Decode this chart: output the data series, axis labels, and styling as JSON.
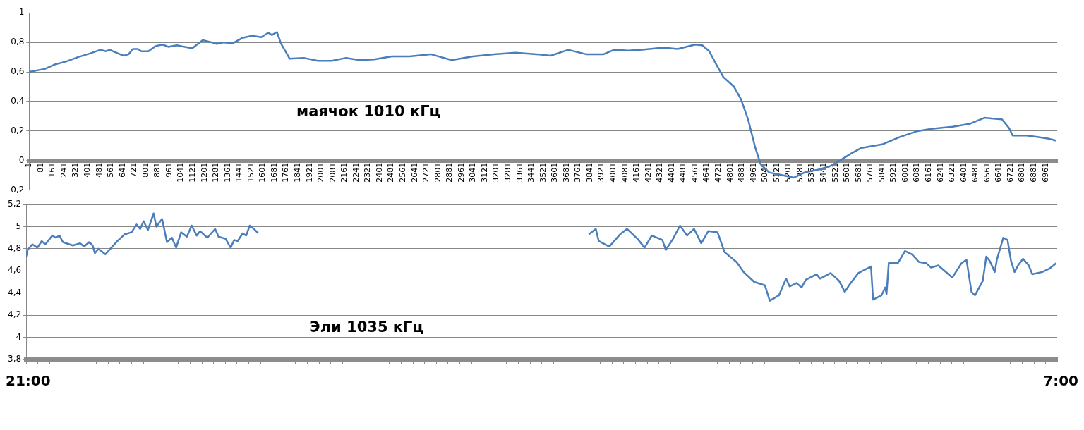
{
  "chart_data": [
    {
      "type": "line",
      "title": "маячок 1010 кГц",
      "legend": false,
      "marker": "none",
      "grid": "y",
      "xlim": [
        1,
        7040
      ],
      "xticks": [
        1,
        81,
        161,
        241,
        321,
        401,
        481,
        561,
        641,
        721,
        801,
        881,
        961,
        1041,
        1121,
        1201,
        1281,
        1361,
        1441,
        1521,
        1601,
        1681,
        1761,
        1841,
        1921,
        2001,
        2081,
        2161,
        2241,
        2321,
        2401,
        2481,
        2561,
        2641,
        2721,
        2801,
        2881,
        2961,
        3041,
        3121,
        3201,
        3281,
        3361,
        3441,
        3521,
        3601,
        3681,
        3761,
        3841,
        3921,
        4001,
        4081,
        4161,
        4241,
        4321,
        4401,
        4481,
        4561,
        4641,
        4721,
        4801,
        4881,
        4961,
        5041,
        5121,
        5201,
        5281,
        5361,
        5441,
        5521,
        5601,
        5681,
        5761,
        5841,
        5921,
        6001,
        6081,
        6161,
        6241,
        6321,
        6401,
        6481,
        6561,
        6641,
        6721,
        6801,
        6881,
        6961
      ],
      "ylim": [
        -0.2,
        1
      ],
      "yticks": [
        {
          "value": -0.2,
          "label": "-0,2"
        },
        0,
        {
          "value": 0.2,
          "label": "0,2"
        },
        {
          "value": 0.4,
          "label": "0,4"
        },
        {
          "value": 0.6,
          "label": "0,6"
        },
        {
          "value": 0.8,
          "label": "0,8"
        },
        1
      ],
      "series": [
        {
          "color": "#4a7ebb",
          "x": [
            1,
            107,
            175,
            252,
            334,
            416,
            489,
            527,
            552,
            610,
            648,
            682,
            711,
            745,
            769,
            817,
            866,
            914,
            953,
            1011,
            1093,
            1117,
            1189,
            1252,
            1286,
            1334,
            1397,
            1460,
            1527,
            1590,
            1638,
            1663,
            1697,
            1726,
            1784,
            1880,
            1977,
            2073,
            2170,
            2267,
            2363,
            2484,
            2605,
            2750,
            2894,
            3040,
            3184,
            3330,
            3474,
            3571,
            3692,
            3813,
            3934,
            4006,
            4103,
            4199,
            4344,
            4441,
            4561,
            4610,
            4658,
            4706,
            4754,
            4827,
            4875,
            4923,
            4972,
            5010,
            5068,
            5165,
            5237,
            5310,
            5406,
            5479,
            5551,
            5624,
            5696,
            5841,
            5962,
            6083,
            6179,
            6324,
            6445,
            6542,
            6590,
            6662,
            6711,
            6735,
            6831,
            6904,
            6976,
            7034
          ],
          "values": [
            0.6,
            0.62,
            0.65,
            0.67,
            0.7,
            0.725,
            0.75,
            0.74,
            0.75,
            0.725,
            0.71,
            0.72,
            0.755,
            0.755,
            0.74,
            0.74,
            0.775,
            0.785,
            0.77,
            0.78,
            0.765,
            0.76,
            0.815,
            0.8,
            0.79,
            0.8,
            0.795,
            0.83,
            0.845,
            0.835,
            0.865,
            0.85,
            0.87,
            0.79,
            0.69,
            0.695,
            0.675,
            0.675,
            0.695,
            0.68,
            0.685,
            0.705,
            0.705,
            0.72,
            0.68,
            0.705,
            0.72,
            0.73,
            0.72,
            0.71,
            0.75,
            0.72,
            0.72,
            0.75,
            0.745,
            0.75,
            0.765,
            0.755,
            0.785,
            0.78,
            0.74,
            0.65,
            0.565,
            0.5,
            0.415,
            0.28,
            0.09,
            -0.025,
            -0.08,
            -0.1,
            -0.115,
            -0.08,
            -0.06,
            -0.04,
            0,
            0.045,
            0.085,
            0.11,
            0.16,
            0.2,
            0.215,
            0.23,
            0.25,
            0.29,
            0.285,
            0.28,
            0.22,
            0.17,
            0.17,
            0.16,
            0.15,
            0.135
          ]
        }
      ]
    },
    {
      "type": "line",
      "title": "Эли 1035 кГц",
      "legend": false,
      "marker": "none",
      "grid": "y",
      "tick_labels": "y",
      "annotations": [
        "21:00",
        "7:00"
      ],
      "xlim": [
        1,
        7040
      ],
      "xticks": [
        {
          "value": 1,
          "label": null
        },
        {
          "value": 81,
          "label": null
        },
        {
          "value": 161,
          "label": null
        },
        {
          "value": 241,
          "label": null
        },
        {
          "value": 321,
          "label": null
        },
        {
          "value": 401,
          "label": null
        },
        {
          "value": 481,
          "label": null
        },
        {
          "value": 561,
          "label": null
        },
        {
          "value": 641,
          "label": null
        },
        {
          "value": 721,
          "label": null
        },
        {
          "value": 801,
          "label": null
        },
        {
          "value": 881,
          "label": null
        },
        {
          "value": 961,
          "label": null
        },
        {
          "value": 1041,
          "label": null
        },
        {
          "value": 1121,
          "label": null
        },
        {
          "value": 1201,
          "label": null
        },
        {
          "value": 1281,
          "label": null
        },
        {
          "value": 1361,
          "label": null
        },
        {
          "value": 1441,
          "label": null
        },
        {
          "value": 1521,
          "label": null
        },
        {
          "value": 1601,
          "label": null
        },
        {
          "value": 1681,
          "label": null
        },
        {
          "value": 1761,
          "label": null
        },
        {
          "value": 1841,
          "label": null
        },
        {
          "value": 1921,
          "label": null
        },
        {
          "value": 2001,
          "label": null
        },
        {
          "value": 2081,
          "label": null
        },
        {
          "value": 2161,
          "label": null
        },
        {
          "value": 2241,
          "label": null
        },
        {
          "value": 2321,
          "label": null
        },
        {
          "value": 2401,
          "label": null
        },
        {
          "value": 2481,
          "label": null
        },
        {
          "value": 2561,
          "label": null
        },
        {
          "value": 2641,
          "label": null
        },
        {
          "value": 2721,
          "label": null
        },
        {
          "value": 2801,
          "label": null
        },
        {
          "value": 2881,
          "label": null
        },
        {
          "value": 2961,
          "label": null
        },
        {
          "value": 3041,
          "label": null
        },
        {
          "value": 3121,
          "label": null
        },
        {
          "value": 3201,
          "label": null
        },
        {
          "value": 3281,
          "label": null
        },
        {
          "value": 3361,
          "label": null
        },
        {
          "value": 3441,
          "label": null
        },
        {
          "value": 3521,
          "label": null
        },
        {
          "value": 3601,
          "label": null
        },
        {
          "value": 3681,
          "label": null
        },
        {
          "value": 3761,
          "label": null
        },
        {
          "value": 3841,
          "label": null
        },
        {
          "value": 3921,
          "label": null
        },
        {
          "value": 4001,
          "label": null
        },
        {
          "value": 4081,
          "label": null
        },
        {
          "value": 4161,
          "label": null
        },
        {
          "value": 4241,
          "label": null
        },
        {
          "value": 4321,
          "label": null
        },
        {
          "value": 4401,
          "label": null
        },
        {
          "value": 4481,
          "label": null
        },
        {
          "value": 4561,
          "label": null
        },
        {
          "value": 4641,
          "label": null
        },
        {
          "value": 4721,
          "label": null
        },
        {
          "value": 4801,
          "label": null
        },
        {
          "value": 4881,
          "label": null
        },
        {
          "value": 4961,
          "label": null
        },
        {
          "value": 5041,
          "label": null
        },
        {
          "value": 5121,
          "label": null
        },
        {
          "value": 5201,
          "label": null
        },
        {
          "value": 5281,
          "label": null
        },
        {
          "value": 5361,
          "label": null
        },
        {
          "value": 5441,
          "label": null
        },
        {
          "value": 5521,
          "label": null
        },
        {
          "value": 5601,
          "label": null
        },
        {
          "value": 5681,
          "label": null
        },
        {
          "value": 5761,
          "label": null
        },
        {
          "value": 5841,
          "label": null
        },
        {
          "value": 5921,
          "label": null
        },
        {
          "value": 6001,
          "label": null
        },
        {
          "value": 6081,
          "label": null
        },
        {
          "value": 6161,
          "label": null
        },
        {
          "value": 6241,
          "label": null
        },
        {
          "value": 6321,
          "label": null
        },
        {
          "value": 6401,
          "label": null
        },
        {
          "value": 6481,
          "label": null
        },
        {
          "value": 6561,
          "label": null
        },
        {
          "value": 6641,
          "label": null
        },
        {
          "value": 6721,
          "label": null
        },
        {
          "value": 6801,
          "label": null
        },
        {
          "value": 6881,
          "label": null
        },
        {
          "value": 6961,
          "label": null
        }
      ],
      "ylim": [
        3.8,
        5.2
      ],
      "yticks": [
        {
          "value": 3.8,
          "label": "3,8"
        },
        4,
        {
          "value": 4.2,
          "label": "4,2"
        },
        {
          "value": 4.4,
          "label": "4,4"
        },
        {
          "value": 4.6,
          "label": "4,6"
        },
        {
          "value": 4.8,
          "label": "4,8"
        },
        5,
        {
          "value": 5.2,
          "label": "5,2"
        }
      ],
      "series": [
        {
          "color": "#4a7ebb",
          "x": [
            1,
            11,
            44,
            78,
            107,
            131,
            180,
            204,
            228,
            252,
            320,
            368,
            397,
            431,
            455,
            470,
            494,
            542,
            576,
            624,
            672,
            721,
            755,
            779,
            803,
            832,
            871,
            890,
            929,
            962,
            996,
            1025,
            1059,
            1098,
            1131,
            1165,
            1189,
            1238,
            1291,
            1315,
            1363,
            1397,
            1421,
            1445,
            1479,
            1503,
            1527,
            1556,
            1585,
            2700,
            3842,
            3890,
            3910,
            3982,
            4055,
            4103,
            4175,
            4223,
            4272,
            4344,
            4368,
            4417,
            4465,
            4513,
            4561,
            4610,
            4658,
            4721,
            4769,
            4851,
            4899,
            4972,
            5044,
            5078,
            5141,
            5189,
            5213,
            5261,
            5295,
            5324,
            5397,
            5421,
            5493,
            5551,
            5590,
            5624,
            5682,
            5769,
            5783,
            5841,
            5866,
            5875,
            5890,
            5952,
            6001,
            6049,
            6097,
            6146,
            6179,
            6228,
            6324,
            6387,
            6421,
            6455,
            6479,
            6532,
            6556,
            6580,
            6614,
            6628,
            6672,
            6701,
            6725,
            6749,
            6773,
            6807,
            6846,
            6870,
            6938,
            6986,
            7034
          ],
          "values": [
            4.73,
            4.79,
            4.84,
            4.81,
            4.87,
            4.84,
            4.92,
            4.9,
            4.92,
            4.86,
            4.83,
            4.85,
            4.82,
            4.86,
            4.83,
            4.76,
            4.8,
            4.75,
            4.8,
            4.87,
            4.93,
            4.95,
            5.02,
            4.98,
            5.05,
            4.97,
            5.12,
            5,
            5.07,
            4.86,
            4.9,
            4.81,
            4.95,
            4.91,
            5.01,
            4.92,
            4.96,
            4.9,
            4.98,
            4.91,
            4.89,
            4.81,
            4.88,
            4.87,
            4.94,
            4.92,
            5.01,
            4.98,
            4.94,
            null,
            4.93,
            4.98,
            4.87,
            4.82,
            4.93,
            4.98,
            4.89,
            4.81,
            4.92,
            4.88,
            4.79,
            4.89,
            5.01,
            4.92,
            4.98,
            4.85,
            4.96,
            4.95,
            4.77,
            4.68,
            4.59,
            4.5,
            4.47,
            4.33,
            4.38,
            4.53,
            4.46,
            4.49,
            4.45,
            4.52,
            4.57,
            4.53,
            4.58,
            4.51,
            4.41,
            4.48,
            4.58,
            4.64,
            4.34,
            4.38,
            4.45,
            4.39,
            4.67,
            4.67,
            4.78,
            4.75,
            4.68,
            4.67,
            4.63,
            4.65,
            4.54,
            4.67,
            4.7,
            4.41,
            4.38,
            4.51,
            4.73,
            4.69,
            4.59,
            4.7,
            4.9,
            4.88,
            4.69,
            4.59,
            4.65,
            4.71,
            4.65,
            4.57,
            4.59,
            4.62,
            4.67
          ]
        }
      ]
    }
  ]
}
